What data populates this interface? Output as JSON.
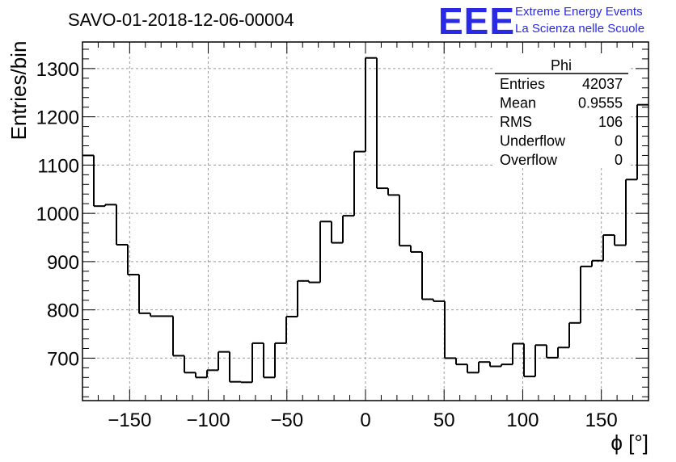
{
  "chart_data": {
    "type": "histogram",
    "title": "SAVO-01-2018-12-06-00004",
    "xlabel": "ϕ [°]",
    "ylabel": "Entries/bin",
    "xlim": [
      -180,
      180
    ],
    "ylim": [
      612,
      1355
    ],
    "grid": true,
    "bin_width": 7.2,
    "x_ticks": [
      -150,
      -100,
      -50,
      0,
      50,
      100,
      150
    ],
    "x_tick_labels": [
      "−150",
      "−100",
      "−50",
      "0",
      "50",
      "100",
      "150"
    ],
    "y_ticks": [
      700,
      800,
      900,
      1000,
      1100,
      1200,
      1300
    ],
    "y_tick_labels": [
      "700",
      "800",
      "900",
      "1000",
      "1100",
      "1200",
      "1300"
    ],
    "values": [
      1120,
      1015,
      1018,
      935,
      873,
      793,
      787,
      787,
      705,
      670,
      660,
      675,
      713,
      651,
      650,
      731,
      660,
      731,
      786,
      860,
      857,
      983,
      939,
      995,
      1128,
      1322,
      1052,
      1038,
      933,
      920,
      822,
      818,
      700,
      687,
      670,
      692,
      683,
      687,
      730,
      662,
      727,
      701,
      722,
      773,
      890,
      902,
      955,
      934,
      1070,
      1225
    ]
  },
  "stats_box": {
    "name": "Phi",
    "rows": [
      {
        "label": "Entries",
        "value": "42037"
      },
      {
        "label": "Mean",
        "value": "0.9555"
      },
      {
        "label": "RMS",
        "value": "106"
      },
      {
        "label": "Underflow",
        "value": "0"
      },
      {
        "label": "Overflow",
        "value": "0"
      }
    ]
  },
  "brand": {
    "logo": "EEE",
    "line1": "Extreme Energy Events",
    "line2": "La Scienza nelle Scuole",
    "color": "#2929e6"
  }
}
